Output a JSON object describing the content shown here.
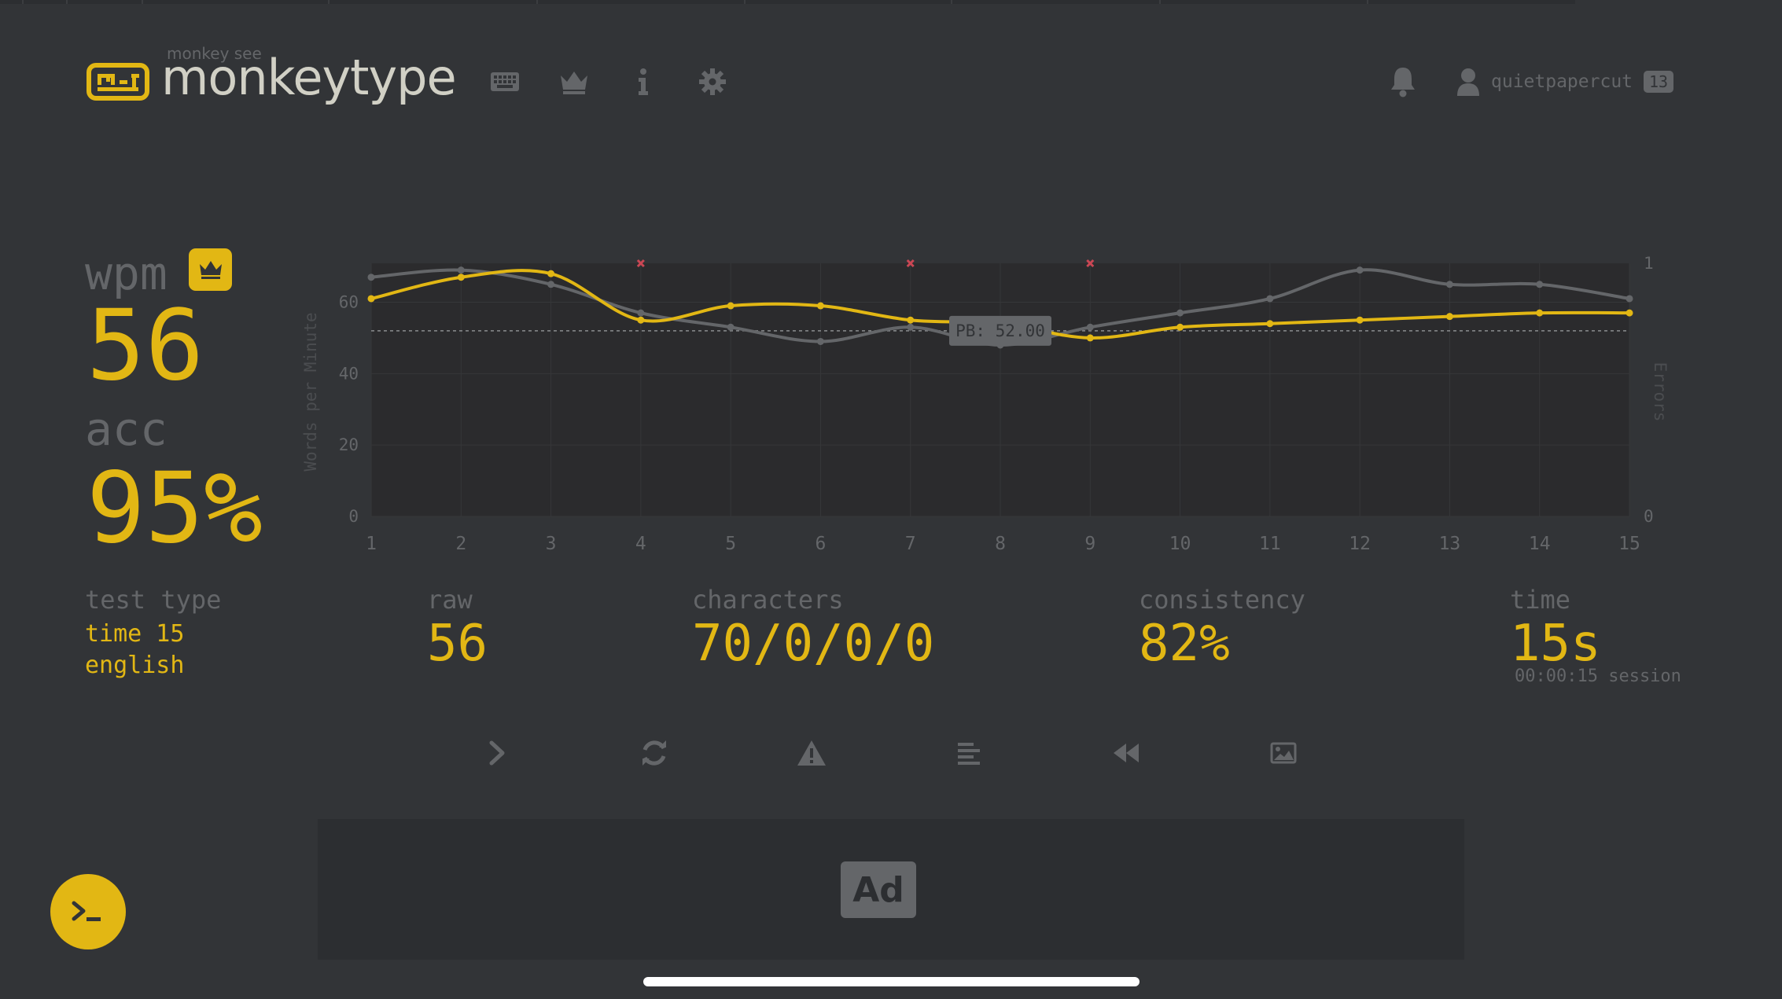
{
  "header": {
    "logo_small": "monkey see",
    "logo_text": "monkeytype",
    "nav": [
      "keyboard-icon",
      "crown-icon",
      "info-icon",
      "gear-icon"
    ],
    "username": "quietpapercut",
    "level": "13"
  },
  "result": {
    "wpm_label": "wpm",
    "wpm": "56",
    "acc_label": "acc",
    "acc": "95%",
    "test_type_label": "test type",
    "test_type_mode": "time 15",
    "test_type_language": "english",
    "raw_label": "raw",
    "raw": "56",
    "characters_label": "characters",
    "characters": "70/0/0/0",
    "consistency_label": "consistency",
    "consistency": "82%",
    "time_label": "time",
    "time": "15s",
    "session": "00:00:15 session"
  },
  "actions": [
    "next-test-icon",
    "restart-icon",
    "report-icon",
    "words-history-icon",
    "replay-icon",
    "screenshot-icon"
  ],
  "ad_label": "Ad",
  "colors": {
    "bg": "#323437",
    "main": "#e2b714",
    "sub": "#646669",
    "text": "#d1d0c5",
    "error": "#ca4754"
  },
  "chart_data": {
    "type": "line",
    "x": [
      1,
      2,
      3,
      4,
      5,
      6,
      7,
      8,
      9,
      10,
      11,
      12,
      13,
      14,
      15
    ],
    "series": [
      {
        "values": [
          61,
          67,
          68,
          55,
          59,
          59,
          55,
          54,
          50,
          53,
          54,
          55,
          56,
          57,
          57
        ]
      },
      {
        "values": [
          67,
          69,
          65,
          57,
          53,
          49,
          53,
          48,
          53,
          57,
          61,
          69,
          65,
          65,
          61
        ]
      }
    ],
    "errors": [
      {
        "x": 4,
        "value": 1
      },
      {
        "x": 7,
        "value": 1
      },
      {
        "x": 9,
        "value": 1
      }
    ],
    "ylabel": "Words per Minute",
    "y2label": "Errors",
    "ylim": [
      0,
      72
    ],
    "yticks": [
      0,
      20,
      40,
      60
    ],
    "y2ticks": [
      0,
      1
    ],
    "pb_value": 52,
    "pb_label": "PB: 52.00",
    "grid": true
  }
}
